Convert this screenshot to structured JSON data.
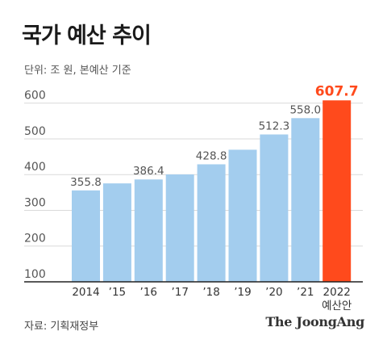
{
  "header": {
    "title": "국가 예산 추이",
    "subtitle": "단위: 조 원, 본예산 기준"
  },
  "footer": {
    "source": "자료: 기획재정부",
    "brand": "The JoongAng"
  },
  "colors": {
    "bar": "#a3cdee",
    "highlight": "#ff4a1c",
    "grid": "#d9d9d9",
    "axis_text": "#555555",
    "label_text": "#555555"
  },
  "chart_data": {
    "type": "bar",
    "categories": [
      "2014",
      "’15",
      "’16",
      "’17",
      "’18",
      "’19",
      "’20",
      "’21",
      "2022"
    ],
    "category_sublabels": [
      "",
      "",
      "",
      "",
      "",
      "",
      "",
      "",
      "예산안"
    ],
    "values": [
      355.8,
      375.4,
      386.4,
      400.5,
      428.8,
      469.6,
      512.3,
      558.0,
      607.7
    ],
    "data_labels": [
      "355.8",
      "",
      "386.4",
      "",
      "428.8",
      "",
      "512.3",
      "558.0",
      "607.7"
    ],
    "highlight_index": 8,
    "title": "국가 예산 추이",
    "ylabel": "단위: 조 원, 본예산 기준",
    "yticks": [
      100,
      200,
      300,
      400,
      500,
      600
    ],
    "ytick_labels": [
      "100",
      "200",
      "300",
      "400",
      "500",
      "600"
    ],
    "ylim": [
      100,
      640
    ],
    "grid": true
  }
}
